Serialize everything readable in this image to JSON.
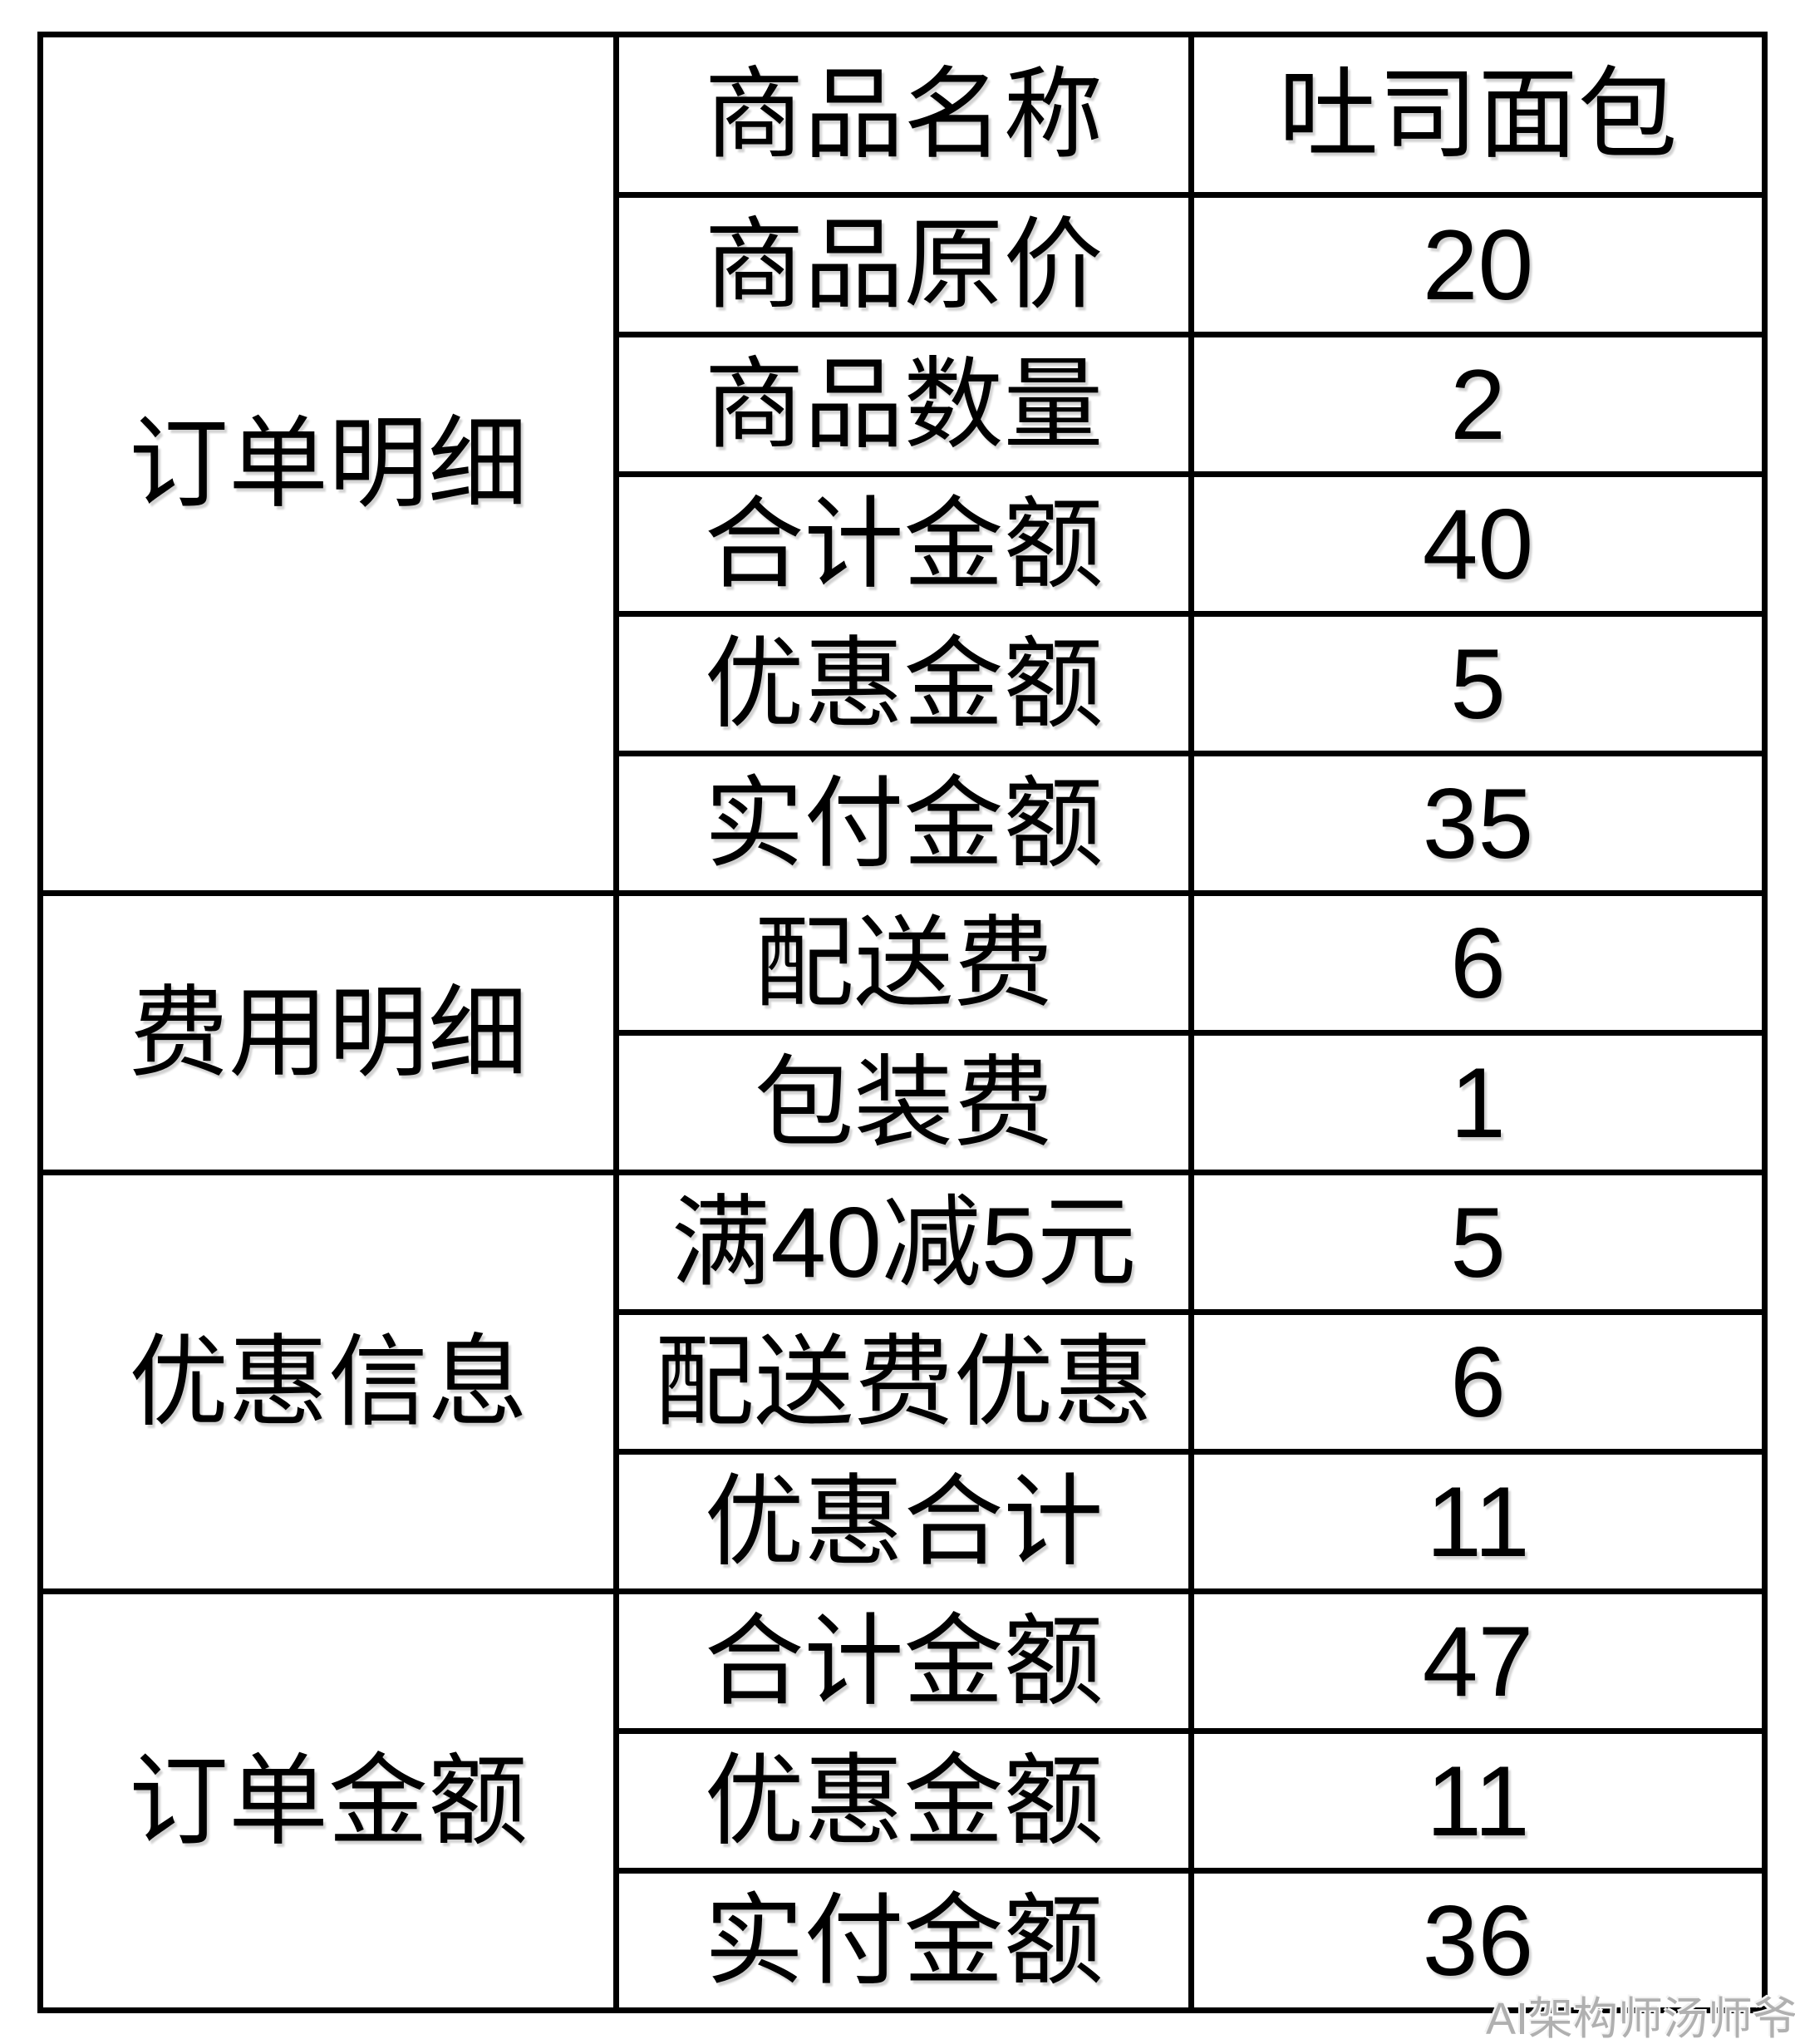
{
  "table": {
    "groups": [
      {
        "label": "订单明细",
        "rows": [
          {
            "label": "商品名称",
            "value": "吐司面包"
          },
          {
            "label": "商品原价",
            "value": "20"
          },
          {
            "label": "商品数量",
            "value": "2"
          },
          {
            "label": "合计金额",
            "value": "40"
          },
          {
            "label": "优惠金额",
            "value": "5"
          },
          {
            "label": "实付金额",
            "value": "35"
          }
        ]
      },
      {
        "label": "费用明细",
        "rows": [
          {
            "label": "配送费",
            "value": "6"
          },
          {
            "label": "包装费",
            "value": "1"
          }
        ]
      },
      {
        "label": "优惠信息",
        "rows": [
          {
            "label": "满40减5元",
            "value": "5"
          },
          {
            "label": "配送费优惠",
            "value": "6"
          },
          {
            "label": "优惠合计",
            "value": "11"
          }
        ]
      },
      {
        "label": "订单金额",
        "rows": [
          {
            "label": "合计金额",
            "value": "47"
          },
          {
            "label": "优惠金额",
            "value": "11"
          },
          {
            "label": "实付金额",
            "value": "36"
          }
        ]
      }
    ]
  },
  "watermark": {
    "text": "AI架构师汤师爷"
  },
  "colors": {
    "border": "#000000",
    "text": "#000000",
    "watermark": "#b0b0b0",
    "background": "#ffffff"
  }
}
